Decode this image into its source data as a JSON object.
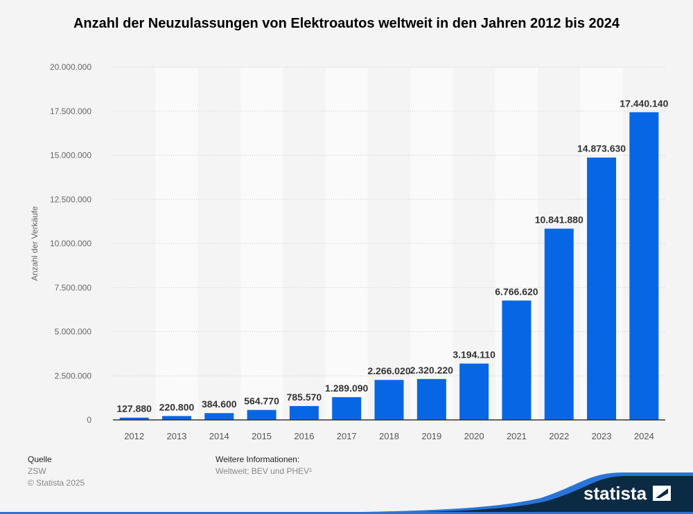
{
  "chart_data": {
    "type": "bar",
    "title": "Anzahl der Neuzulassungen von Elektroautos weltweit in den Jahren 2012 bis 2024",
    "xlabel": "",
    "ylabel": "Anzahl der Verkäufe",
    "ylim": [
      0,
      20000000
    ],
    "yticks": [
      0,
      2500000,
      5000000,
      7500000,
      10000000,
      12500000,
      15000000,
      17500000,
      20000000
    ],
    "ytick_labels": [
      "0",
      "2.500.000",
      "5.000.000",
      "7.500.000",
      "10.000.000",
      "12.500.000",
      "15.000.000",
      "17.500.000",
      "20.000.000"
    ],
    "categories": [
      "2012",
      "2013",
      "2014",
      "2015",
      "2016",
      "2017",
      "2018",
      "2019",
      "2020",
      "2021",
      "2022",
      "2023",
      "2024"
    ],
    "values": [
      127880,
      220800,
      384600,
      564770,
      785570,
      1289090,
      2266020,
      2320220,
      3194110,
      6766620,
      10841880,
      14873630,
      17440140
    ],
    "data_labels": [
      "127.880",
      "220.800",
      "384.600",
      "564.770",
      "785.570",
      "1.289.090",
      "2.266.020",
      "2.320.220",
      "3.194.110",
      "6.766.620",
      "10.841.880",
      "14.873.630",
      "17.440.140"
    ],
    "grid": true,
    "bar_color": "#0766e4"
  },
  "footer": {
    "source_label": "Quelle",
    "source": "ZSW",
    "copyright": "© Statista 2025",
    "info_label": "Weitere Informationen:",
    "info": "Weltweit; BEV und PHEV¹"
  },
  "logo": {
    "text": "statista"
  }
}
